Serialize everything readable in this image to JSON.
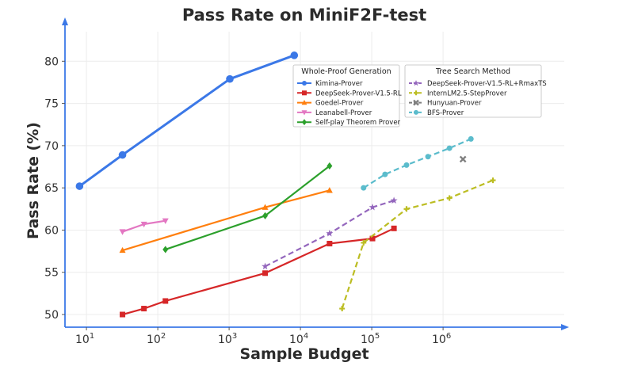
{
  "chart_data": {
    "type": "line",
    "title": "Pass Rate on MiniF2F-test",
    "xlabel": "Sample Budget",
    "ylabel": "Pass Rate (%)",
    "xscale": "log",
    "xlim": [
      5,
      50000000
    ],
    "ylim": [
      48.5,
      83.5
    ],
    "yticks": [
      50,
      55,
      60,
      65,
      70,
      75,
      80
    ],
    "xticks": [
      {
        "value": 10,
        "base": "10",
        "exp": "1"
      },
      {
        "value": 100,
        "base": "10",
        "exp": "2"
      },
      {
        "value": 1000,
        "base": "10",
        "exp": "3"
      },
      {
        "value": 10000,
        "base": "10",
        "exp": "4"
      },
      {
        "value": 100000,
        "base": "10",
        "exp": "5"
      },
      {
        "value": 1000000,
        "base": "10",
        "exp": "6"
      }
    ],
    "grid": true,
    "legends": [
      {
        "title": "Whole-Proof Generation",
        "placement": "top-center",
        "entries": [
          "Kimina-Prover",
          "DeepSeek-Prover-V1.5-RL",
          "Goedel-Prover",
          "Leanabell-Prover",
          "Self-play Theorem Prover"
        ]
      },
      {
        "title": "Tree Search Method",
        "placement": "top-right",
        "entries": [
          "DeepSeek-Prover-V1.5-RL+RmaxTS",
          "InternLM2.5-StepProver",
          "Hunyuan-Prover",
          "BFS-Prover"
        ]
      }
    ],
    "series": [
      {
        "name": "Kimina-Prover",
        "group": "Whole-Proof Generation",
        "color": "#3b78e7",
        "marker": "circle",
        "dashed": false,
        "x": [
          8,
          32,
          1024,
          8192
        ],
        "y": [
          65.2,
          68.9,
          77.9,
          80.7
        ]
      },
      {
        "name": "DeepSeek-Prover-V1.5-RL",
        "group": "Whole-Proof Generation",
        "color": "#d62728",
        "marker": "square",
        "dashed": false,
        "x": [
          32,
          64,
          128,
          3200,
          25600,
          102400,
          204800
        ],
        "y": [
          50.0,
          50.7,
          51.6,
          54.9,
          58.4,
          59.0,
          60.2
        ]
      },
      {
        "name": "Goedel-Prover",
        "group": "Whole-Proof Generation",
        "color": "#ff7f0e",
        "marker": "triangle-up",
        "dashed": false,
        "x": [
          32,
          3200,
          25600
        ],
        "y": [
          57.6,
          62.7,
          64.7
        ]
      },
      {
        "name": "Leanabell-Prover",
        "group": "Whole-Proof Generation",
        "color": "#e377c2",
        "marker": "triangle-down",
        "dashed": false,
        "x": [
          32,
          64,
          128
        ],
        "y": [
          59.8,
          60.7,
          61.1
        ]
      },
      {
        "name": "Self-play Theorem Prover",
        "group": "Whole-Proof Generation",
        "color": "#2ca02c",
        "marker": "diamond",
        "dashed": false,
        "x": [
          128,
          3200,
          25600
        ],
        "y": [
          57.7,
          61.7,
          67.6
        ]
      },
      {
        "name": "DeepSeek-Prover-V1.5-RL+RmaxTS",
        "group": "Tree Search Method",
        "color": "#9467bd",
        "marker": "star",
        "dashed": true,
        "x": [
          3200,
          25600,
          102400,
          204800
        ],
        "y": [
          55.7,
          59.6,
          62.7,
          63.5
        ]
      },
      {
        "name": "InternLM2.5-StepProver",
        "group": "Tree Search Method",
        "color": "#bcbd22",
        "marker": "plus",
        "dashed": true,
        "x": [
          38400,
          76800,
          307200,
          1228800,
          5000000
        ],
        "y": [
          50.7,
          58.5,
          62.5,
          63.8,
          65.9
        ]
      },
      {
        "name": "Hunyuan-Prover",
        "group": "Tree Search Method",
        "color": "#7f7f7f",
        "marker": "x",
        "dashed": true,
        "x": [
          1900000
        ],
        "y": [
          68.4
        ]
      },
      {
        "name": "BFS-Prover",
        "group": "Tree Search Method",
        "color": "#5bbccc",
        "marker": "circle",
        "dashed": true,
        "x": [
          76800,
          153600,
          307200,
          614400,
          1228800,
          2457600
        ],
        "y": [
          65.0,
          66.6,
          67.7,
          68.7,
          69.7,
          70.8
        ]
      }
    ]
  }
}
